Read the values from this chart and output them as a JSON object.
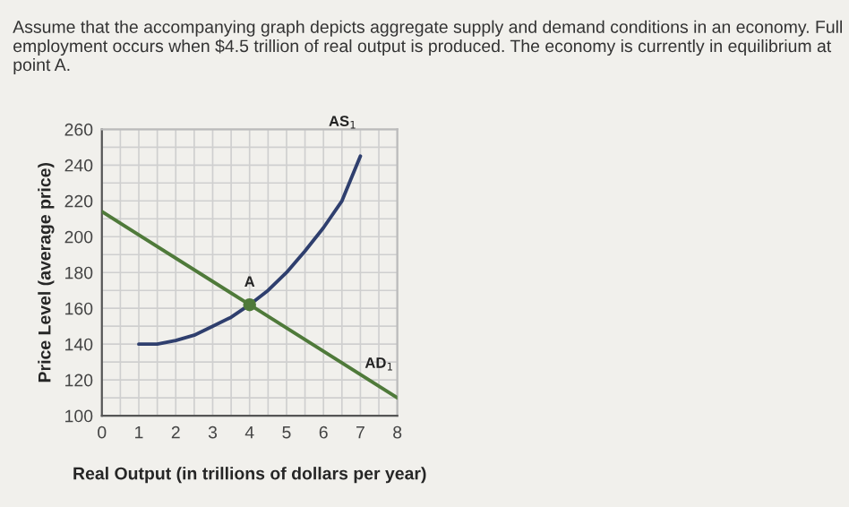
{
  "chart_data": {
    "type": "line",
    "title": "Assume that the accompanying graph depicts aggregate supply and demand conditions in an economy. Full employment occurs when $4.5 trillion of real output is produced. The economy is currently in equilibrium at point A.",
    "xlabel": "Real Output (in trillions of dollars per year)",
    "ylabel": "Price Level (average price)",
    "series": [
      {
        "name": "AS$_{1}$",
        "color": "#2f3f6e",
        "x": [
          1,
          1.5,
          2,
          2.5,
          3,
          3.5,
          4,
          4.5,
          5,
          5.5,
          6,
          6.5,
          7
        ],
        "values": [
          140,
          140,
          142,
          145,
          150,
          155,
          162,
          170,
          180,
          192,
          205,
          220,
          245
        ]
      },
      {
        "name": "AD$_{1}$",
        "color": "#4f7a3a",
        "x": [
          0,
          4,
          8
        ],
        "values": [
          214,
          162,
          110
        ]
      },
      {
        "type": "scatter",
        "color": "#4f7a3a",
        "x": [
          4
        ],
        "values": [
          162
        ],
        "marker": "circle"
      }
    ],
    "annotations": [
      {
        "text": "A",
        "x": 4,
        "y": 162
      }
    ],
    "xlim": [
      0,
      8
    ],
    "ylim": [
      100,
      260
    ],
    "xticks": [
      0,
      {
        "value": 0.5,
        "label": null
      },
      1,
      {
        "value": 1.5,
        "label": null
      },
      2,
      {
        "value": 2.5,
        "label": null
      },
      3,
      {
        "value": 3.5,
        "label": null
      },
      4,
      {
        "value": 4.5,
        "label": null
      },
      5,
      {
        "value": 5.5,
        "label": null
      },
      6,
      {
        "value": 6.5,
        "label": null
      },
      7,
      {
        "value": 7.5,
        "label": null
      },
      8
    ],
    "yticks": [
      100,
      {
        "value": 110,
        "label": null
      },
      120,
      {
        "value": 130,
        "label": null
      },
      140,
      {
        "value": 150,
        "label": null
      },
      160,
      {
        "value": 170,
        "label": null
      },
      180,
      {
        "value": 190,
        "label": null
      },
      200,
      {
        "value": 210,
        "label": null
      },
      220,
      {
        "value": 230,
        "label": null
      },
      240,
      {
        "value": 250,
        "label": null
      },
      260
    ],
    "grid": true,
    "legend": false
  }
}
